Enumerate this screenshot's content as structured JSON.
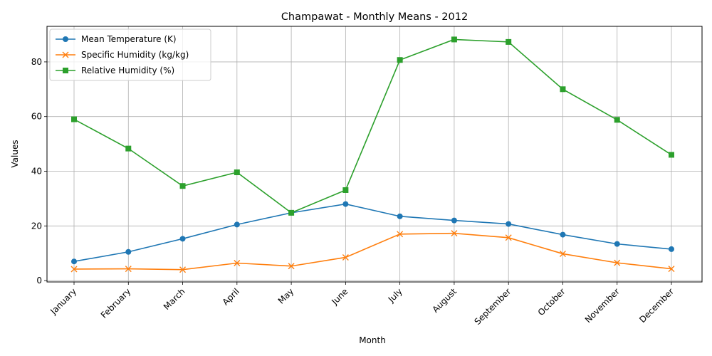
{
  "chart_data": {
    "type": "line",
    "title": "Champawat - Monthly Means - 2012",
    "xlabel": "Month",
    "ylabel": "Values",
    "categories": [
      "January",
      "February",
      "March",
      "April",
      "May",
      "June",
      "July",
      "August",
      "September",
      "October",
      "November",
      "December"
    ],
    "ylim": [
      -0.5,
      93
    ],
    "yticks": [
      0,
      20,
      40,
      60,
      80
    ],
    "grid": true,
    "legend_position": "top-left",
    "series": [
      {
        "name": "Mean Temperature (K)",
        "color": "#1f77b4",
        "marker": "circle",
        "values": [
          7.0,
          10.5,
          15.3,
          20.5,
          24.8,
          28.0,
          23.5,
          22.0,
          20.7,
          16.8,
          13.4,
          11.5
        ]
      },
      {
        "name": "Specific Humidity (kg/kg)",
        "color": "#ff7f0e",
        "marker": "x",
        "values": [
          4.2,
          4.3,
          4.0,
          6.4,
          5.3,
          8.5,
          17.0,
          17.3,
          15.7,
          9.8,
          6.5,
          4.3
        ]
      },
      {
        "name": "Relative Humidity (%)",
        "color": "#2ca02c",
        "marker": "square",
        "values": [
          59.0,
          48.3,
          34.6,
          39.6,
          24.8,
          33.1,
          80.7,
          88.2,
          87.3,
          70.0,
          58.8,
          46.0
        ]
      }
    ]
  }
}
